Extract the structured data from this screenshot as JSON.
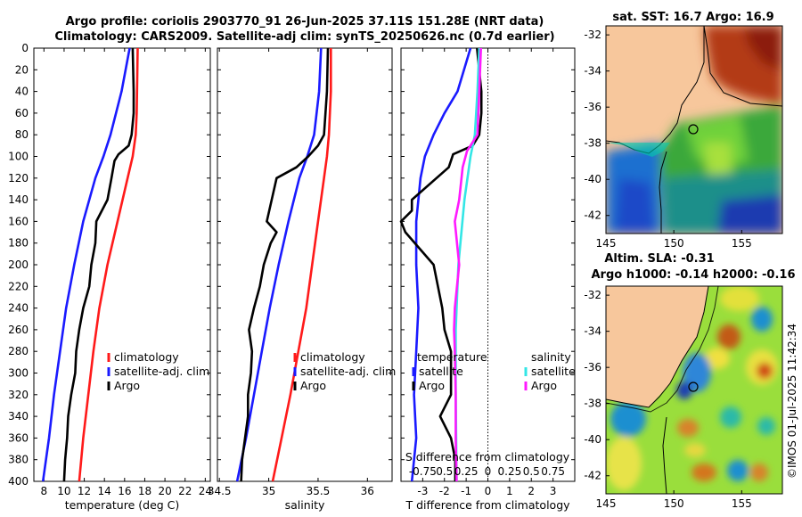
{
  "titles": {
    "main_line1": "Argo profile: coriolis 2903770_91 26-Jun-2025 37.11S 151.28E (NRT data)",
    "main_line2": "Climatology: CARS2009. Satellite-adj clim: synTS_20250626.nc (0.7d earlier)",
    "sst_map": "sat. SST: 16.7 Argo: 16.9",
    "sla_line1": "Altim. SLA: -0.31",
    "sla_line2": "Argo h1000: -0.14 h2000: -0.16",
    "credit": "©IMOS 01-Jul-2025 11:42:34"
  },
  "colors": {
    "climatology": "#ff1a1a",
    "satellite": "#1a1aff",
    "argo": "#000000",
    "t_diff_satellite": "#1a1aff",
    "s_diff_satellite": "#33e6e6",
    "s_diff_argo": "#ff1aff",
    "land": "#f7c79c"
  },
  "depth_axis": {
    "ticks": [
      "0",
      "20",
      "40",
      "60",
      "80",
      "100",
      "120",
      "140",
      "160",
      "180",
      "200",
      "220",
      "240",
      "260",
      "280",
      "300",
      "320",
      "340",
      "360",
      "380",
      "400"
    ],
    "range": [
      0,
      400
    ]
  },
  "chart_data": [
    {
      "type": "line",
      "id": "temperature",
      "xlabel": "temperature (deg C)",
      "ylabel": "",
      "xlim": [
        7,
        24.5
      ],
      "ylim": [
        400,
        0
      ],
      "xticks": [
        "8",
        "10",
        "12",
        "14",
        "16",
        "18",
        "20",
        "22",
        "24"
      ],
      "legend": [
        "climatology",
        "satellite-adj. clim",
        "Argo"
      ],
      "legend_position": "bottom-right",
      "series": [
        {
          "name": "climatology",
          "depth": [
            0,
            60,
            80,
            100,
            120,
            160,
            200,
            240,
            280,
            320,
            360,
            400
          ],
          "values": [
            17.3,
            17.2,
            17.1,
            16.8,
            16.3,
            15.3,
            14.3,
            13.5,
            12.9,
            12.4,
            11.9,
            11.5
          ]
        },
        {
          "name": "satellite-adj. clim",
          "depth": [
            0,
            40,
            80,
            100,
            120,
            160,
            200,
            240,
            280,
            320,
            360,
            400
          ],
          "values": [
            16.5,
            15.7,
            14.6,
            13.9,
            13.1,
            11.9,
            11.0,
            10.2,
            9.6,
            9.0,
            8.5,
            7.9
          ]
        },
        {
          "name": "Argo",
          "depth": [
            0,
            40,
            60,
            80,
            90,
            98,
            104,
            120,
            140,
            160,
            180,
            200,
            220,
            240,
            260,
            280,
            300,
            320,
            340,
            360,
            380,
            400
          ],
          "values": [
            16.8,
            16.9,
            16.9,
            16.7,
            16.4,
            15.4,
            15.0,
            14.7,
            14.3,
            13.2,
            13.1,
            12.7,
            12.5,
            11.9,
            11.5,
            11.2,
            11.1,
            10.7,
            10.4,
            10.3,
            10.1,
            10.0
          ]
        }
      ]
    },
    {
      "type": "line",
      "id": "salinity",
      "xlabel": "salinity",
      "ylabel": "",
      "xlim": [
        34.48,
        36.25
      ],
      "ylim": [
        400,
        0
      ],
      "xticks": [
        "34.5",
        "35",
        "35.5",
        "36"
      ],
      "legend": [
        "climatology",
        "satellite-adj. clim",
        "Argo"
      ],
      "legend_position": "bottom-right",
      "series": [
        {
          "name": "climatology",
          "depth": [
            0,
            40,
            80,
            100,
            120,
            160,
            200,
            240,
            280,
            320,
            360,
            400
          ],
          "values": [
            35.63,
            35.63,
            35.61,
            35.59,
            35.56,
            35.5,
            35.44,
            35.38,
            35.3,
            35.22,
            35.13,
            35.04
          ]
        },
        {
          "name": "satellite-adj. clim",
          "depth": [
            0,
            40,
            80,
            100,
            120,
            160,
            200,
            240,
            280,
            320,
            360,
            400
          ],
          "values": [
            35.53,
            35.51,
            35.46,
            35.39,
            35.31,
            35.2,
            35.1,
            35.01,
            34.93,
            34.85,
            34.77,
            34.68
          ]
        },
        {
          "name": "Argo",
          "depth": [
            0,
            40,
            80,
            90,
            100,
            110,
            120,
            140,
            160,
            170,
            180,
            200,
            220,
            240,
            260,
            280,
            300,
            320,
            340,
            360,
            380,
            400
          ],
          "values": [
            35.6,
            35.59,
            35.56,
            35.5,
            35.4,
            35.28,
            35.08,
            35.03,
            34.98,
            35.08,
            35.02,
            34.95,
            34.91,
            34.85,
            34.8,
            34.83,
            34.82,
            34.79,
            34.79,
            34.76,
            34.73,
            34.72
          ]
        }
      ]
    },
    {
      "type": "line",
      "id": "differences",
      "xlabel": "T difference from climatology",
      "xlabel_top": "S difference from climatology",
      "xlim": [
        -4,
        4
      ],
      "xlim_top": [
        -1,
        1
      ],
      "ylim": [
        400,
        0
      ],
      "xticks": [
        "-3",
        "-2",
        "-1",
        "0",
        "1",
        "2",
        "3"
      ],
      "xticks_top": [
        "-0.75",
        "0.5",
        "0.25",
        "0",
        "0.25",
        "0.5",
        "0.75"
      ],
      "legend_temperature_title": "temperature",
      "legend_salinity_title": "salinity",
      "legend_temperature": [
        "satellite",
        "Argo"
      ],
      "legend_salinity": [
        "satellite",
        "Argo"
      ],
      "legend_position": "bottom",
      "series": [
        {
          "name": "T satellite",
          "depth": [
            0,
            40,
            60,
            80,
            100,
            120,
            160,
            200,
            240,
            280,
            320,
            360,
            400
          ],
          "values": [
            -0.8,
            -1.4,
            -2.0,
            -2.5,
            -2.9,
            -3.1,
            -3.3,
            -3.3,
            -3.2,
            -3.3,
            -3.4,
            -3.3,
            -3.5
          ]
        },
        {
          "name": "T Argo",
          "depth": [
            0,
            40,
            60,
            80,
            90,
            98,
            110,
            140,
            150,
            160,
            170,
            200,
            240,
            260,
            280,
            320,
            340,
            360,
            380,
            400
          ],
          "values": [
            -0.5,
            -0.3,
            -0.3,
            -0.4,
            -0.7,
            -1.6,
            -1.8,
            -3.5,
            -3.5,
            -4.0,
            -3.8,
            -2.5,
            -2.1,
            -2.0,
            -1.7,
            -1.7,
            -2.2,
            -1.7,
            -1.5,
            -1.5
          ]
        },
        {
          "name": "S satellite",
          "depth": [
            0,
            40,
            80,
            100,
            140,
            200,
            260,
            320,
            400
          ],
          "values": [
            -0.1,
            -0.12,
            -0.15,
            -0.2,
            -0.27,
            -0.34,
            -0.37,
            -0.37,
            -0.36
          ]
        },
        {
          "name": "S Argo",
          "depth": [
            0,
            40,
            80,
            95,
            110,
            140,
            160,
            200,
            240,
            260,
            280,
            320,
            360,
            400
          ],
          "values": [
            -0.08,
            -0.1,
            -0.12,
            -0.24,
            -0.29,
            -0.33,
            -0.38,
            -0.33,
            -0.38,
            -0.39,
            -0.38,
            -0.37,
            -0.37,
            -0.36
          ]
        }
      ]
    },
    {
      "type": "heatmap",
      "id": "sst_map",
      "title": "sat. SST: 16.7 Argo: 16.9",
      "xticks": [
        "145",
        "150",
        "155"
      ],
      "yticks": [
        "-32",
        "-34",
        "-36",
        "-38",
        "-40",
        "-42"
      ],
      "xlim": [
        145,
        158
      ],
      "ylim": [
        -43,
        -31.5
      ],
      "argo_position": {
        "lon": 151.28,
        "lat": -37.11
      }
    },
    {
      "type": "heatmap",
      "id": "sla_map",
      "title": "Altim. SLA: -0.31",
      "xticks": [
        "145",
        "150",
        "155"
      ],
      "yticks": [
        "-32",
        "-34",
        "-36",
        "-38",
        "-40",
        "-42"
      ],
      "xlim": [
        145,
        158
      ],
      "ylim": [
        -43,
        -31.5
      ],
      "argo_position": {
        "lon": 151.28,
        "lat": -37.11
      }
    }
  ]
}
